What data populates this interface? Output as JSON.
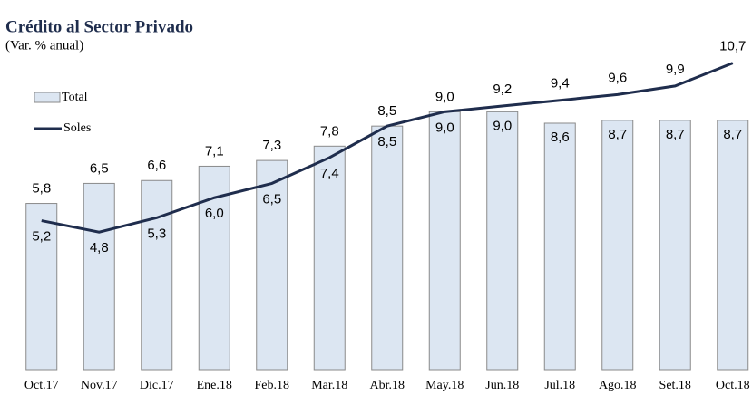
{
  "chart_data": {
    "type": "bar_line",
    "title": "Crédito al Sector Privado",
    "subtitle": "(Var. % anual)",
    "categories": [
      "Oct.17",
      "Nov.17",
      "Dic.17",
      "Ene.18",
      "Feb.18",
      "Mar.18",
      "Abr.18",
      "May.18",
      "Jun.18",
      "Jul.18",
      "Ago.18",
      "Set.18",
      "Oct.18"
    ],
    "series": [
      {
        "name": "Total",
        "type": "bar",
        "color": "#dce6f2",
        "values": [
          5.8,
          6.5,
          6.6,
          7.1,
          7.3,
          7.8,
          8.5,
          9.0,
          9.0,
          8.6,
          8.7,
          8.7,
          8.7
        ],
        "value_labels": [
          "5,8",
          "6,5",
          "6,6",
          "7,1",
          "7,3",
          "7,8",
          "8,5",
          "9,0",
          "9,0",
          "8,6",
          "8,7",
          "8,7",
          "8,7"
        ]
      },
      {
        "name": "Soles",
        "type": "line",
        "color": "#1f2d4d",
        "values": [
          5.2,
          4.8,
          5.3,
          6.0,
          6.5,
          7.4,
          8.5,
          9.0,
          9.2,
          9.4,
          9.6,
          9.9,
          10.7
        ],
        "value_labels": [
          "5,2",
          "4,8",
          "5,3",
          "6,0",
          "6,5",
          "7,4",
          "8,5",
          "9,0",
          "9,2",
          "9,4",
          "9,6",
          "9,9",
          "10,7"
        ]
      }
    ],
    "ylim": [
      0,
      12.9
    ]
  }
}
